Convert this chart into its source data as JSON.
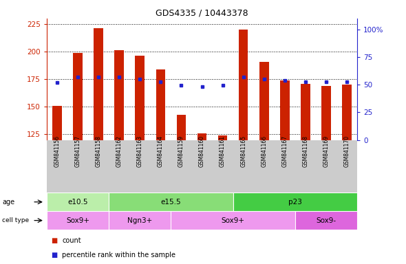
{
  "title": "GDS4335 / 10443378",
  "samples": [
    "GSM841156",
    "GSM841157",
    "GSM841158",
    "GSM841162",
    "GSM841163",
    "GSM841164",
    "GSM841159",
    "GSM841160",
    "GSM841161",
    "GSM841165",
    "GSM841166",
    "GSM841167",
    "GSM841168",
    "GSM841169",
    "GSM841170"
  ],
  "counts": [
    151,
    199,
    221,
    201,
    196,
    184,
    143,
    126,
    124,
    220,
    191,
    174,
    171,
    169,
    170
  ],
  "percentile_ranks": [
    47,
    52,
    52,
    52,
    50,
    48,
    45,
    44,
    45,
    52,
    50,
    49,
    48,
    48,
    48
  ],
  "ylim_left": [
    120,
    230
  ],
  "yticks_left": [
    125,
    150,
    175,
    200,
    225
  ],
  "ylim_right": [
    0,
    110
  ],
  "yticks_right": [
    0,
    25,
    50,
    75,
    100
  ],
  "yticklabels_right": [
    "0",
    "25",
    "50",
    "75",
    "100%"
  ],
  "bar_color": "#cc2200",
  "dot_color": "#2222cc",
  "age_groups": [
    {
      "label": "e10.5",
      "start": 0,
      "end": 3,
      "color": "#bbeeaa"
    },
    {
      "label": "e15.5",
      "start": 3,
      "end": 9,
      "color": "#88dd77"
    },
    {
      "label": "p23",
      "start": 9,
      "end": 15,
      "color": "#44cc44"
    }
  ],
  "cell_type_groups": [
    {
      "label": "Sox9+",
      "start": 0,
      "end": 3,
      "color": "#ee99ee"
    },
    {
      "label": "Ngn3+",
      "start": 3,
      "end": 6,
      "color": "#ee99ee"
    },
    {
      "label": "Sox9+",
      "start": 6,
      "end": 12,
      "color": "#ee99ee"
    },
    {
      "label": "Sox9-",
      "start": 12,
      "end": 15,
      "color": "#dd66dd"
    }
  ],
  "bg_color": "#ffffff",
  "sample_bg_color": "#cccccc",
  "legend_items": [
    {
      "label": "count",
      "color": "#cc2200"
    },
    {
      "label": "percentile rank within the sample",
      "color": "#2222cc"
    }
  ]
}
